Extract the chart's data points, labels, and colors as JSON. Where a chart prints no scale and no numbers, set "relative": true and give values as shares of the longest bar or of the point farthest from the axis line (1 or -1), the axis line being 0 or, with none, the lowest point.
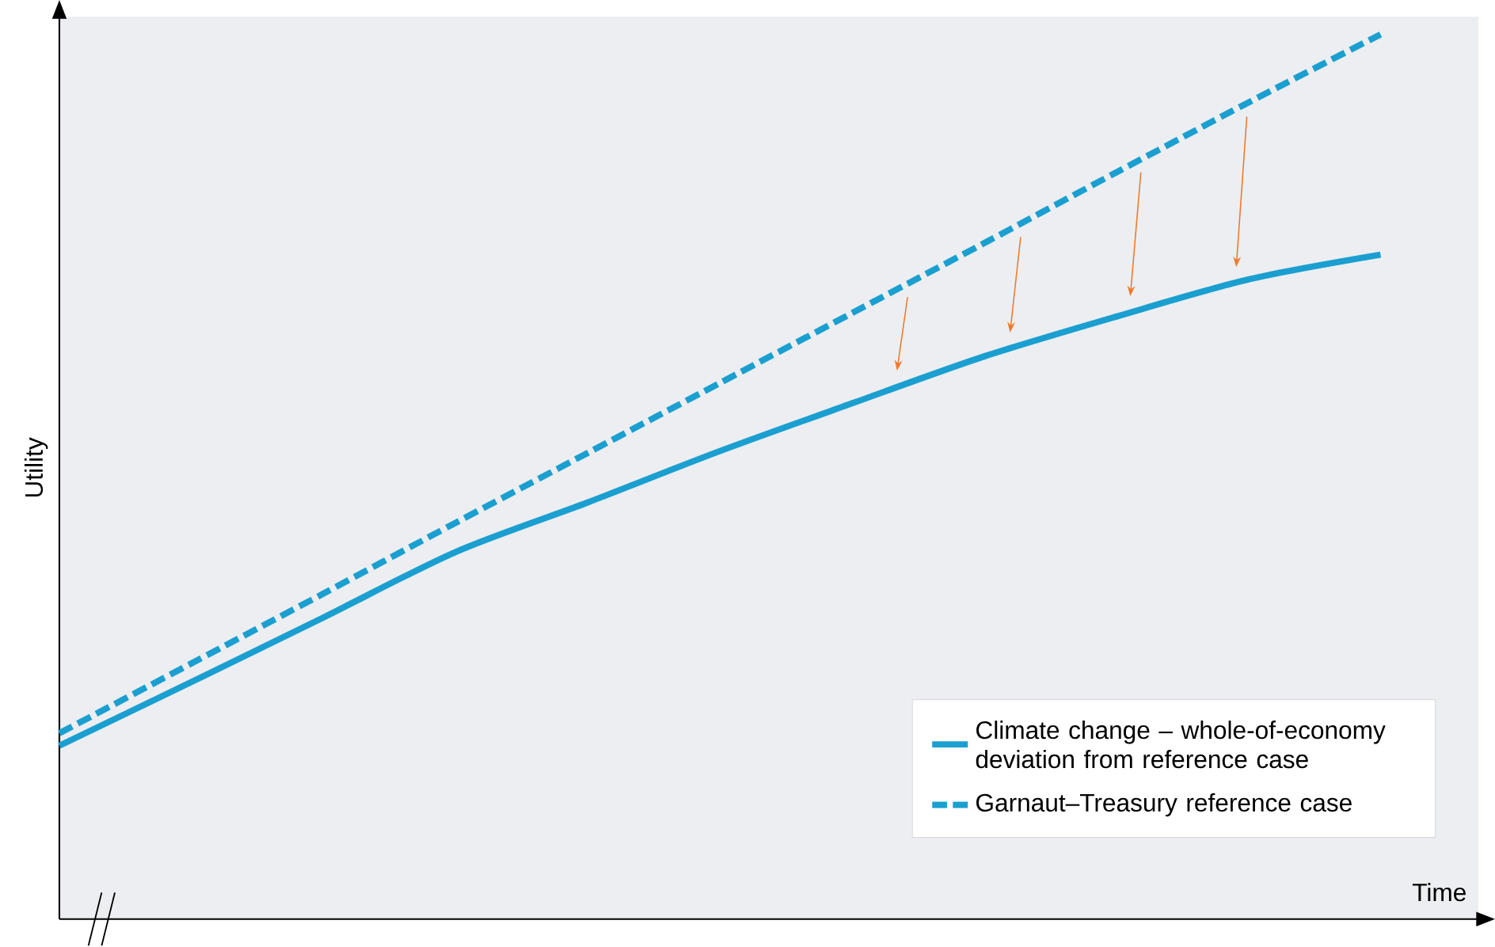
{
  "chart_data": {
    "type": "line",
    "relative": true,
    "xlabel": "Time",
    "ylabel": "Utility",
    "categories": [
      null,
      null,
      null,
      null,
      null,
      null,
      null,
      null,
      null,
      null,
      null
    ],
    "series": [
      {
        "name": "Climate change – whole-of-economy deviation from reference case",
        "color": "#1a9fd0",
        "line_style": "solid",
        "values": [
          0.196,
          0.268,
          0.341,
          0.415,
          0.471,
          0.529,
          0.583,
          0.636,
          0.681,
          0.723,
          0.751
        ]
      },
      {
        "name": "Garnaut–Treasury reference case",
        "color": "#1a9fd0",
        "line_style": "dashed",
        "values": [
          0.21,
          0.289,
          0.368,
          0.448,
          0.527,
          0.606,
          0.685,
          0.764,
          0.844,
          0.923,
          1.0
        ]
      }
    ],
    "legend": "bottom right",
    "marker": "none"
  }
}
